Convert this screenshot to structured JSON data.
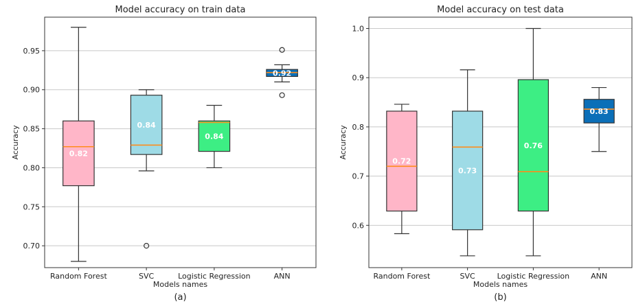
{
  "chart_data": [
    {
      "type": "box",
      "title": "Model accuracy on train data",
      "xlabel": "Models names",
      "ylabel": "Accuracy",
      "caption": "(a)",
      "ylim": [
        0.672,
        0.993
      ],
      "yticks": [
        0.7,
        0.75,
        0.8,
        0.85,
        0.9,
        0.95
      ],
      "ytick_labels": [
        "0.70",
        "0.75",
        "0.80",
        "0.85",
        "0.90",
        "0.95"
      ],
      "grid": "horizontal",
      "categories": [
        "Random Forest",
        "SVC",
        "Logistic Regression",
        "ANN"
      ],
      "boxes": [
        {
          "whislo": 0.68,
          "q1": 0.777,
          "median": 0.827,
          "q3": 0.86,
          "whishi": 0.98,
          "fliers": [],
          "mean_label": "0.82",
          "color": "#ffb6c8"
        },
        {
          "whislo": 0.796,
          "q1": 0.817,
          "median": 0.829,
          "q3": 0.893,
          "whishi": 0.9,
          "fliers": [
            0.7
          ],
          "mean_label": "0.84",
          "color": "#9edbe6"
        },
        {
          "whislo": 0.8,
          "q1": 0.821,
          "median": 0.858,
          "q3": 0.86,
          "whishi": 0.88,
          "fliers": [],
          "mean_label": "0.84",
          "color": "#3dee84"
        },
        {
          "whislo": 0.91,
          "q1": 0.917,
          "median": 0.922,
          "q3": 0.926,
          "whishi": 0.932,
          "fliers": [
            0.951,
            0.893
          ],
          "mean_label": "0.92",
          "color": "#0b6fb8"
        }
      ]
    },
    {
      "type": "box",
      "title": "Model accuracy on test data",
      "xlabel": "Models names",
      "ylabel": "Accuracy",
      "caption": "(b)",
      "ylim": [
        0.514,
        1.023
      ],
      "yticks": [
        0.6,
        0.7,
        0.8,
        0.9,
        1.0
      ],
      "ytick_labels": [
        "0.6",
        "0.7",
        "0.8",
        "0.9",
        "1.0"
      ],
      "grid": "horizontal",
      "categories": [
        "Random Forest",
        "SVC",
        "Logistic Regression",
        "ANN"
      ],
      "boxes": [
        {
          "whislo": 0.583,
          "q1": 0.629,
          "median": 0.72,
          "q3": 0.832,
          "whishi": 0.846,
          "fliers": [],
          "mean_label": "0.72",
          "color": "#ffb6c8"
        },
        {
          "whislo": 0.538,
          "q1": 0.591,
          "median": 0.759,
          "q3": 0.832,
          "whishi": 0.916,
          "fliers": [],
          "mean_label": "0.73",
          "color": "#9edbe6"
        },
        {
          "whislo": 0.538,
          "q1": 0.629,
          "median": 0.709,
          "q3": 0.896,
          "whishi": 1.0,
          "fliers": [],
          "mean_label": "0.76",
          "color": "#3dee84"
        },
        {
          "whislo": 0.75,
          "q1": 0.808,
          "median": 0.836,
          "q3": 0.856,
          "whishi": 0.88,
          "fliers": [],
          "mean_label": "0.83",
          "color": "#0b6fb8"
        }
      ]
    }
  ]
}
